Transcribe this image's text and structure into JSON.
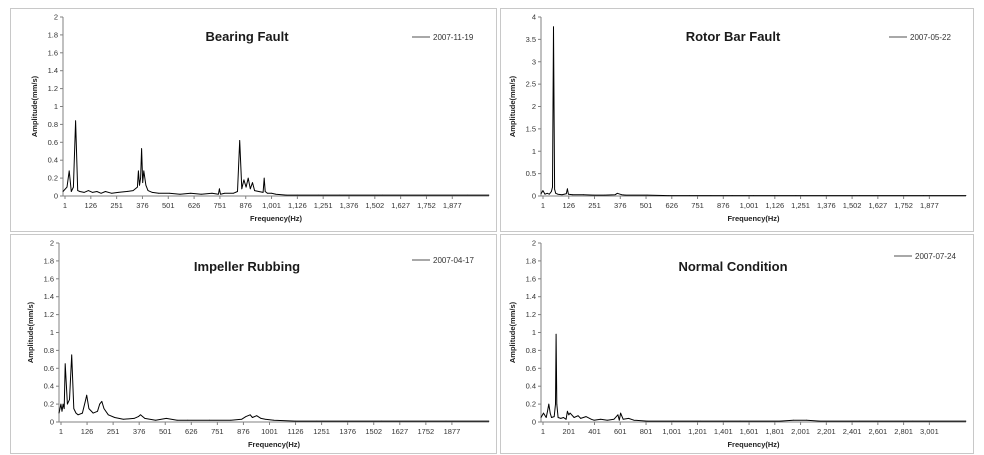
{
  "colors": {
    "series": "#000000",
    "axis": "#808080",
    "legend_line": "#8c8c8c",
    "border": "#c8c8c8"
  },
  "chart_data": [
    {
      "type": "line",
      "title": "Bearing Fault",
      "xlabel": "Frequency(Hz)",
      "ylabel": "Amplitude(mm/s)",
      "legend": "2007-11-19",
      "legend_position": "top-right",
      "grid": false,
      "ylim": [
        0,
        2
      ],
      "yticks": [
        "0",
        "0.2",
        "0.4",
        "0.6",
        "0.8",
        "1",
        "1.2",
        "1.4",
        "1.6",
        "1.8",
        "2"
      ],
      "xtick_labels": [
        "1",
        "126",
        "251",
        "376",
        "501",
        "626",
        "751",
        "876",
        "1,001",
        "1,126",
        "1,251",
        "1,376",
        "1,502",
        "1,627",
        "1,752",
        "1,877"
      ],
      "xlim": [
        1,
        2000
      ],
      "x": [
        1,
        20,
        30,
        40,
        50,
        60,
        70,
        80,
        100,
        120,
        140,
        160,
        180,
        200,
        230,
        260,
        300,
        330,
        350,
        355,
        360,
        365,
        370,
        375,
        380,
        390,
        400,
        420,
        450,
        500,
        550,
        600,
        650,
        700,
        730,
        735,
        740,
        760,
        800,
        820,
        830,
        840,
        850,
        860,
        870,
        880,
        890,
        900,
        920,
        940,
        945,
        950,
        960,
        980,
        1000,
        1050,
        1100,
        1200,
        1300,
        1500,
        1700,
        1900,
        2000
      ],
      "values": [
        0.05,
        0.1,
        0.28,
        0.05,
        0.1,
        0.84,
        0.06,
        0.05,
        0.04,
        0.06,
        0.04,
        0.05,
        0.03,
        0.05,
        0.03,
        0.04,
        0.05,
        0.06,
        0.1,
        0.28,
        0.12,
        0.2,
        0.53,
        0.15,
        0.28,
        0.12,
        0.06,
        0.04,
        0.03,
        0.03,
        0.02,
        0.03,
        0.02,
        0.03,
        0.02,
        0.08,
        0.02,
        0.03,
        0.03,
        0.05,
        0.62,
        0.08,
        0.18,
        0.1,
        0.2,
        0.08,
        0.15,
        0.06,
        0.05,
        0.04,
        0.2,
        0.05,
        0.03,
        0.03,
        0.02,
        0.01,
        0.01,
        0.01,
        0.01,
        0.01,
        0.01,
        0.01,
        0.01
      ]
    },
    {
      "type": "line",
      "title": "Rotor Bar Fault",
      "xlabel": "Frequency(Hz)",
      "ylabel": "Amplitude(mm/s)",
      "legend": "2007-05-22",
      "legend_position": "top-right",
      "grid": false,
      "ylim": [
        0,
        4
      ],
      "yticks": [
        "0",
        "0.5",
        "1",
        "1.5",
        "2",
        "2.5",
        "3",
        "3.5",
        "4"
      ],
      "xtick_labels": [
        "1",
        "126",
        "251",
        "376",
        "501",
        "626",
        "751",
        "876",
        "1,001",
        "1,126",
        "1,251",
        "1,376",
        "1,502",
        "1,627",
        "1,752",
        "1,877"
      ],
      "xlim": [
        1,
        2000
      ],
      "x": [
        1,
        10,
        20,
        30,
        40,
        50,
        55,
        60,
        65,
        70,
        80,
        100,
        120,
        125,
        130,
        150,
        200,
        250,
        300,
        350,
        360,
        380,
        400,
        500,
        600,
        700,
        800,
        900,
        1000,
        1100,
        1200,
        1500,
        1800,
        2000
      ],
      "values": [
        0.05,
        0.12,
        0.04,
        0.06,
        0.04,
        0.1,
        0.2,
        3.78,
        0.15,
        0.06,
        0.04,
        0.03,
        0.05,
        0.16,
        0.04,
        0.03,
        0.03,
        0.02,
        0.02,
        0.03,
        0.06,
        0.03,
        0.02,
        0.02,
        0.01,
        0.01,
        0.01,
        0.01,
        0.01,
        0.01,
        0.01,
        0.01,
        0.01,
        0.01
      ]
    },
    {
      "type": "line",
      "title": "Impeller Rubbing",
      "xlabel": "Frequency(Hz)",
      "ylabel": "Amplitude(mm/s)",
      "legend": "2007-04-17",
      "legend_position": "top-right",
      "grid": false,
      "ylim": [
        0,
        2
      ],
      "yticks": [
        "0",
        "0.2",
        "0.4",
        "0.6",
        "0.8",
        "1",
        "1.2",
        "1.4",
        "1.6",
        "1.8",
        "2"
      ],
      "xtick_labels": [
        "1",
        "126",
        "251",
        "376",
        "501",
        "626",
        "751",
        "876",
        "1001",
        "1126",
        "1251",
        "1376",
        "1502",
        "1627",
        "1752",
        "1877"
      ],
      "xlim": [
        1,
        2000
      ],
      "x": [
        1,
        10,
        15,
        20,
        25,
        30,
        40,
        50,
        60,
        70,
        80,
        90,
        110,
        125,
        130,
        140,
        160,
        180,
        190,
        200,
        210,
        230,
        260,
        300,
        350,
        370,
        380,
        390,
        400,
        450,
        500,
        550,
        600,
        700,
        800,
        850,
        870,
        890,
        900,
        920,
        940,
        960,
        1000,
        1100,
        1200,
        1500,
        1800,
        2000
      ],
      "values": [
        0.1,
        0.2,
        0.12,
        0.2,
        0.15,
        0.65,
        0.2,
        0.25,
        0.75,
        0.15,
        0.1,
        0.08,
        0.1,
        0.25,
        0.3,
        0.15,
        0.1,
        0.12,
        0.2,
        0.23,
        0.15,
        0.08,
        0.05,
        0.03,
        0.04,
        0.06,
        0.08,
        0.06,
        0.04,
        0.02,
        0.04,
        0.02,
        0.02,
        0.02,
        0.02,
        0.03,
        0.06,
        0.08,
        0.05,
        0.07,
        0.04,
        0.03,
        0.02,
        0.01,
        0.01,
        0.01,
        0.01,
        0.01
      ]
    },
    {
      "type": "line",
      "title": "Normal Condition",
      "xlabel": "Frequency(Hz)",
      "ylabel": "Amplitude(mm/s)",
      "legend": "2007-07-24",
      "legend_position": "top-right",
      "grid": false,
      "ylim": [
        0,
        2
      ],
      "yticks": [
        "0",
        "0.2",
        "0.4",
        "0.6",
        "0.8",
        "1",
        "1.2",
        "1.4",
        "1.6",
        "1.8",
        "2"
      ],
      "xtick_labels": [
        "1",
        "201",
        "401",
        "601",
        "801",
        "1,001",
        "1,201",
        "1,401",
        "1,601",
        "1,801",
        "2,001",
        "2,201",
        "2,401",
        "2,601",
        "2,801",
        "3,001"
      ],
      "xlim": [
        1,
        3200
      ],
      "x": [
        1,
        20,
        40,
        50,
        60,
        70,
        80,
        100,
        110,
        115,
        120,
        130,
        150,
        170,
        190,
        200,
        210,
        220,
        250,
        280,
        300,
        340,
        380,
        400,
        450,
        500,
        550,
        580,
        590,
        600,
        620,
        660,
        700,
        800,
        1000,
        1200,
        1500,
        1800,
        1900,
        2000,
        2100,
        2400,
        2800,
        3200
      ],
      "values": [
        0.05,
        0.1,
        0.05,
        0.12,
        0.2,
        0.1,
        0.05,
        0.06,
        0.2,
        0.98,
        0.2,
        0.05,
        0.04,
        0.05,
        0.03,
        0.12,
        0.08,
        0.1,
        0.05,
        0.07,
        0.04,
        0.06,
        0.03,
        0.02,
        0.03,
        0.02,
        0.03,
        0.08,
        0.02,
        0.1,
        0.03,
        0.04,
        0.02,
        0.01,
        0.01,
        0.01,
        0.01,
        0.01,
        0.02,
        0.02,
        0.01,
        0.01,
        0.01,
        0.01
      ]
    }
  ]
}
